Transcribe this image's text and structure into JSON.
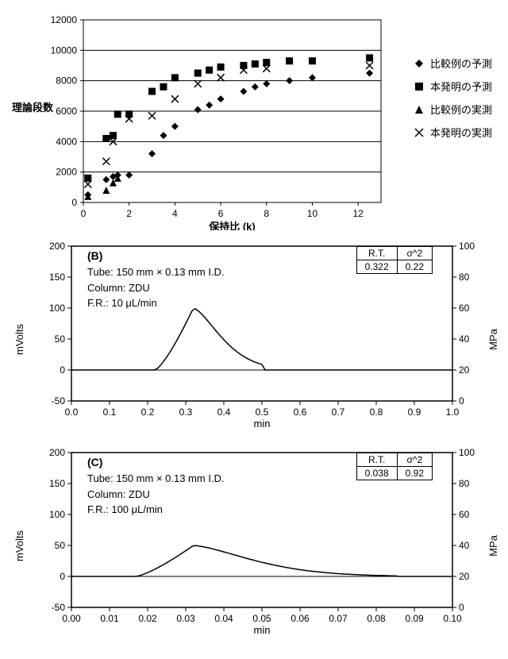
{
  "scatter_chart": {
    "type": "scatter",
    "y_axis_label": "理論段数",
    "x_axis_label": "保持比 (k)",
    "xlim": [
      0,
      13
    ],
    "ylim": [
      0,
      12000
    ],
    "xticks": [
      0,
      2,
      4,
      6,
      8,
      10,
      12
    ],
    "yticks": [
      0,
      2000,
      4000,
      6000,
      8000,
      10000,
      12000
    ],
    "grid_y": [
      2000,
      4000,
      6000,
      8000,
      10000
    ],
    "grid_color": "#000000",
    "background": "#ffffff",
    "series": [
      {
        "name": "比較例の予測",
        "marker": "diamond",
        "color": "#000000",
        "data": [
          [
            0.2,
            500
          ],
          [
            1,
            1500
          ],
          [
            1.3,
            1700
          ],
          [
            1.5,
            1800
          ],
          [
            2,
            1800
          ],
          [
            3,
            3200
          ],
          [
            3.5,
            4400
          ],
          [
            4,
            5000
          ],
          [
            5,
            6100
          ],
          [
            5.5,
            6400
          ],
          [
            6,
            6800
          ],
          [
            7,
            7300
          ],
          [
            7.5,
            7600
          ],
          [
            8,
            7800
          ],
          [
            9,
            8000
          ],
          [
            10,
            8200
          ],
          [
            12.5,
            8500
          ]
        ]
      },
      {
        "name": "本発明の予測",
        "marker": "square",
        "color": "#000000",
        "data": [
          [
            0.2,
            1600
          ],
          [
            1,
            4200
          ],
          [
            1.3,
            4400
          ],
          [
            1.5,
            5800
          ],
          [
            2,
            5800
          ],
          [
            3,
            7300
          ],
          [
            3.5,
            7600
          ],
          [
            4,
            8200
          ],
          [
            5,
            8500
          ],
          [
            5.5,
            8700
          ],
          [
            6,
            8900
          ],
          [
            7,
            9000
          ],
          [
            7.5,
            9100
          ],
          [
            8,
            9200
          ],
          [
            9,
            9300
          ],
          [
            10,
            9300
          ],
          [
            12.5,
            9500
          ]
        ]
      },
      {
        "name": "比較例の実測",
        "marker": "triangle",
        "color": "#000000",
        "data": [
          [
            0.2,
            400
          ],
          [
            1,
            800
          ],
          [
            1.3,
            1300
          ],
          [
            1.5,
            1600
          ]
        ]
      },
      {
        "name": "本発明の実測",
        "marker": "cross",
        "color": "#000000",
        "data": [
          [
            0.2,
            1200
          ],
          [
            1,
            2700
          ],
          [
            1.3,
            4000
          ],
          [
            2,
            5500
          ],
          [
            3,
            5700
          ],
          [
            4,
            6800
          ],
          [
            5,
            7800
          ],
          [
            6,
            8200
          ],
          [
            7,
            8700
          ],
          [
            8,
            8800
          ],
          [
            12.5,
            9000
          ]
        ]
      }
    ]
  },
  "chromB": {
    "type": "line",
    "panel_label": "(B)",
    "info_lines": [
      "Tube: 150 mm × 0.13 mm I.D.",
      "Column: ZDU",
      "F.R.: 10 μL/min"
    ],
    "y_left_label": "mVolts",
    "y_right_label": "MPa",
    "x_label": "min",
    "xlim": [
      0.0,
      1.0
    ],
    "ylim_left": [
      -50,
      200
    ],
    "ylim_right": [
      0,
      100
    ],
    "xticks": [
      0.0,
      0.1,
      0.2,
      0.3,
      0.4,
      0.5,
      0.6,
      0.7,
      0.8,
      0.9,
      1.0
    ],
    "yticks_left": [
      -50,
      0,
      50,
      100,
      150,
      200
    ],
    "yticks_right": [
      0,
      20,
      40,
      60,
      80,
      100
    ],
    "table": {
      "h1": "R.T.",
      "h2": "σ^2",
      "v1": "0.322",
      "v2": "0.22"
    },
    "baseline_y_left": 0,
    "baseline_right_y": 20,
    "peak": {
      "start": 0.22,
      "apex": 0.32,
      "end": 0.5,
      "height": 100,
      "skew": 1.8
    },
    "line_color": "#000000",
    "line_width": 1.5
  },
  "chromC": {
    "type": "line",
    "panel_label": "(C)",
    "info_lines": [
      "Tube: 150 mm × 0.13 mm I.D.",
      "Column: ZDU",
      "F.R.: 100 μL/min"
    ],
    "y_left_label": "mVolts",
    "y_right_label": "MPa",
    "x_label": "min",
    "xlim": [
      0.0,
      0.1
    ],
    "ylim_left": [
      -50,
      200
    ],
    "ylim_right": [
      0,
      100
    ],
    "xticks": [
      0.0,
      0.01,
      0.02,
      0.03,
      0.04,
      0.05,
      0.06,
      0.07,
      0.08,
      0.09,
      0.1
    ],
    "table": {
      "h1": "R.T.",
      "h2": "σ^2",
      "v1": "0.038",
      "v2": "0.92"
    },
    "yticks_left": [
      -50,
      0,
      50,
      100,
      150,
      200
    ],
    "yticks_right": [
      0,
      20,
      40,
      60,
      80,
      100
    ],
    "baseline_y_left": 0,
    "baseline_right_y": 20,
    "peak": {
      "start": 0.017,
      "apex": 0.032,
      "end": 0.085,
      "height": 50,
      "skew": 2.5
    },
    "line_color": "#000000",
    "line_width": 1.5
  }
}
